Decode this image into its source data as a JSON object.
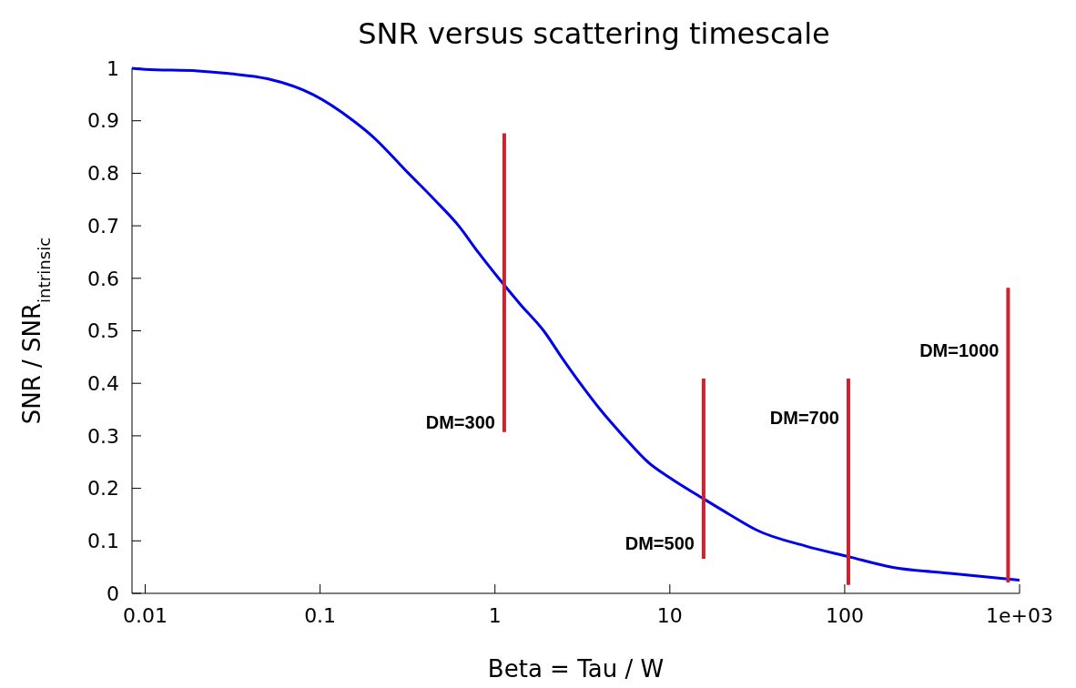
{
  "chart_data": {
    "type": "line",
    "title": "SNR versus scattering timescale",
    "xlabel": "Beta = Tau / W",
    "ylabel": "SNR / SNR$_{intrinsic}$",
    "log": "x",
    "xlim": [
      0.0084,
      1000
    ],
    "ylim": [
      0,
      1
    ],
    "xticks": [
      0.01,
      0.1,
      1,
      10,
      100,
      {
        "value": 1000,
        "label": "1e+03"
      }
    ],
    "yticks": [
      0,
      0.1,
      0.2,
      0.3,
      0.4,
      0.5,
      0.6,
      0.7,
      0.8,
      0.9,
      1
    ],
    "grid": false,
    "series": [
      {
        "color": "#0000ee",
        "x": [
          0.0084,
          0.01,
          0.02,
          0.03,
          0.05,
          0.091,
          0.155,
          0.2,
          0.32,
          0.45,
          0.62,
          0.8,
          1.05,
          1.4,
          1.9,
          2.4,
          3.07,
          4,
          5.4,
          7.5,
          10,
          15.6,
          22,
          31.6,
          60,
          105,
          186,
          400,
          1000
        ],
        "values": [
          1.0,
          0.998,
          0.995,
          0.99,
          0.98,
          0.95,
          0.9,
          0.87,
          0.8,
          0.75,
          0.7,
          0.65,
          0.6,
          0.55,
          0.5,
          0.45,
          0.4,
          0.35,
          0.3,
          0.25,
          0.22,
          0.18,
          0.15,
          0.12,
          0.09,
          0.07,
          0.05,
          0.038,
          0.025
        ]
      },
      {
        "color": "#d0202e",
        "x": [
          1.13,
          1.13
        ],
        "values": [
          0.307,
          0.876
        ]
      },
      {
        "color": "#d0202e",
        "x": [
          15.6,
          15.6
        ],
        "values": [
          0.066,
          0.409
        ]
      },
      {
        "color": "#d0202e",
        "x": [
          105,
          105
        ],
        "values": [
          0.016,
          0.409
        ]
      },
      {
        "color": "#d0202e",
        "x": [
          860,
          860
        ],
        "values": [
          0.021,
          0.582
        ]
      }
    ],
    "annotations": [
      {
        "text": "DM=300",
        "x": 1.13,
        "y": 0.326
      },
      {
        "text": "DM=500",
        "x": 15.6,
        "y": 0.096
      },
      {
        "text": "DM=700",
        "x": 105,
        "y": 0.334
      },
      {
        "text": "DM=1000",
        "x": 860,
        "y": 0.463
      }
    ]
  }
}
